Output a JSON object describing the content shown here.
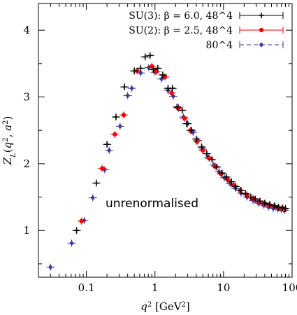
{
  "chart_data": {
    "type": "scatter",
    "title": "",
    "xlabel": "q^2 [GeV^2]",
    "ylabel": "Z_L(q^2, a^2)",
    "xscale": "log",
    "xlim": [
      0.02,
      100
    ],
    "ylim": [
      0.3,
      4.4
    ],
    "x_ticks": [
      {
        "value": 0.1,
        "label": "0.1"
      },
      {
        "value": 1,
        "label": "1"
      },
      {
        "value": 10,
        "label": "10"
      },
      {
        "value": 100,
        "label": "100"
      }
    ],
    "y_ticks": [
      {
        "value": 1,
        "label": "1"
      },
      {
        "value": 2,
        "label": "2"
      },
      {
        "value": 3,
        "label": "3"
      },
      {
        "value": 4,
        "label": "4"
      }
    ],
    "legend_position": "top-right",
    "annotation": "unrenormalised",
    "series": [
      {
        "name": "SU(3): β = 6.0, 48^4",
        "color": "#000000",
        "marker": "plus",
        "points": [
          [
            0.072,
            1.0
          ],
          [
            0.14,
            1.71
          ],
          [
            0.2,
            2.29
          ],
          [
            0.27,
            2.7
          ],
          [
            0.36,
            3.15
          ],
          [
            0.5,
            3.39
          ],
          [
            0.62,
            3.43
          ],
          [
            0.72,
            3.6
          ],
          [
            0.85,
            3.62
          ],
          [
            0.95,
            3.41
          ],
          [
            1.1,
            3.43
          ],
          [
            1.3,
            3.33
          ],
          [
            1.55,
            3.13
          ],
          [
            1.8,
            3.13
          ],
          [
            2.1,
            2.85
          ],
          [
            2.5,
            2.8
          ],
          [
            2.9,
            2.6
          ],
          [
            3.4,
            2.5
          ],
          [
            4.0,
            2.37
          ],
          [
            4.8,
            2.25
          ],
          [
            5.7,
            2.15
          ],
          [
            6.8,
            2.06
          ],
          [
            8.0,
            1.95
          ],
          [
            9.5,
            1.86
          ],
          [
            11,
            1.8
          ],
          [
            13,
            1.73
          ],
          [
            15,
            1.66
          ],
          [
            18,
            1.6
          ],
          [
            21,
            1.55
          ],
          [
            25,
            1.5
          ],
          [
            29,
            1.47
          ],
          [
            34,
            1.44
          ],
          [
            40,
            1.41
          ],
          [
            47,
            1.39
          ],
          [
            55,
            1.37
          ],
          [
            63,
            1.35
          ],
          [
            72,
            1.34
          ],
          [
            80,
            1.33
          ]
        ]
      },
      {
        "name": "SU(2): β = 2.5, 48^4",
        "color": "#ff0000",
        "marker": "circle",
        "points": [
          [
            0.085,
            1.14
          ],
          [
            0.17,
            1.93
          ],
          [
            0.26,
            2.44
          ],
          [
            0.35,
            2.73
          ],
          [
            0.55,
            3.39
          ],
          [
            0.9,
            3.46
          ],
          [
            1.05,
            3.38
          ],
          [
            1.4,
            3.3
          ],
          [
            1.75,
            3.06
          ],
          [
            2.2,
            2.83
          ],
          [
            2.7,
            2.68
          ],
          [
            3.3,
            2.5
          ],
          [
            4.1,
            2.33
          ],
          [
            5.0,
            2.2
          ],
          [
            6.2,
            2.08
          ],
          [
            7.6,
            1.96
          ],
          [
            9.2,
            1.85
          ],
          [
            11.5,
            1.76
          ],
          [
            14,
            1.68
          ],
          [
            17.5,
            1.6
          ],
          [
            22,
            1.53
          ],
          [
            27,
            1.48
          ],
          [
            33,
            1.43
          ],
          [
            40,
            1.4
          ],
          [
            48,
            1.37
          ],
          [
            57,
            1.35
          ],
          [
            66,
            1.33
          ],
          [
            75,
            1.32
          ]
        ]
      },
      {
        "name": "80^4",
        "color": "#3a3aa0",
        "marker": "diamond",
        "dashed": true,
        "points": [
          [
            0.03,
            0.45
          ],
          [
            0.061,
            0.81
          ],
          [
            0.093,
            1.15
          ],
          [
            0.124,
            1.49
          ],
          [
            0.185,
            1.91
          ],
          [
            0.215,
            2.2
          ],
          [
            0.31,
            2.56
          ],
          [
            0.4,
            3.02
          ],
          [
            0.46,
            3.13
          ],
          [
            0.62,
            3.36
          ],
          [
            0.81,
            3.44
          ],
          [
            1.0,
            3.37
          ],
          [
            1.25,
            3.27
          ],
          [
            1.55,
            3.1
          ],
          [
            1.85,
            3.01
          ],
          [
            2.2,
            2.84
          ],
          [
            2.6,
            2.7
          ],
          [
            3.0,
            2.6
          ],
          [
            3.6,
            2.47
          ],
          [
            4.2,
            2.35
          ],
          [
            5.0,
            2.22
          ],
          [
            6.0,
            2.1
          ],
          [
            7.2,
            1.98
          ],
          [
            8.6,
            1.88
          ],
          [
            10.3,
            1.79
          ],
          [
            12.5,
            1.7
          ],
          [
            15,
            1.63
          ],
          [
            18,
            1.56
          ],
          [
            22,
            1.5
          ],
          [
            27,
            1.45
          ],
          [
            32,
            1.41
          ],
          [
            38,
            1.38
          ],
          [
            45,
            1.35
          ],
          [
            53,
            1.33
          ],
          [
            62,
            1.32
          ],
          [
            70,
            1.31
          ],
          [
            78,
            1.3
          ]
        ]
      }
    ]
  }
}
